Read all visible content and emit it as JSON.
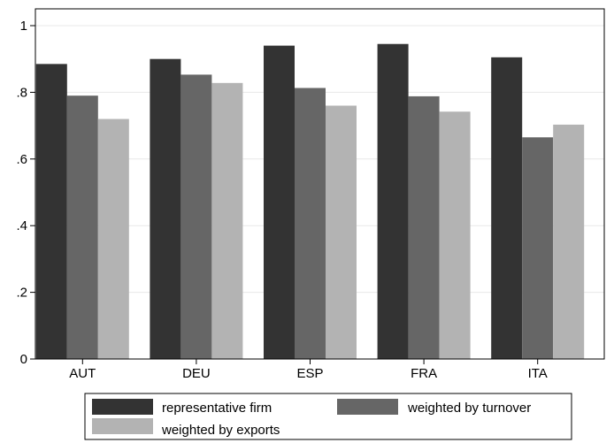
{
  "chart_data": {
    "type": "bar",
    "categories": [
      "AUT",
      "DEU",
      "ESP",
      "FRA",
      "ITA"
    ],
    "series": [
      {
        "name": "representative firm",
        "color": "#333333",
        "values": [
          0.885,
          0.9,
          0.94,
          0.945,
          0.905
        ]
      },
      {
        "name": "weighted by turnover",
        "color": "#666666",
        "values": [
          0.79,
          0.853,
          0.813,
          0.788,
          0.665
        ]
      },
      {
        "name": "weighted by exports",
        "color": "#b3b3b3",
        "values": [
          0.72,
          0.828,
          0.76,
          0.742,
          0.703
        ]
      }
    ],
    "ylim": [
      0,
      1
    ],
    "yticks": [
      {
        "value": 0,
        "label": "0"
      },
      {
        "value": 0.2,
        "label": ".2"
      },
      {
        "value": 0.4,
        "label": ".4"
      },
      {
        "value": 0.6,
        "label": ".6"
      },
      {
        "value": 0.8,
        "label": ".8"
      },
      {
        "value": 1,
        "label": "1"
      }
    ],
    "grid": true,
    "legend_position": "bottom",
    "xlabel": "",
    "ylabel": "",
    "title": ""
  }
}
